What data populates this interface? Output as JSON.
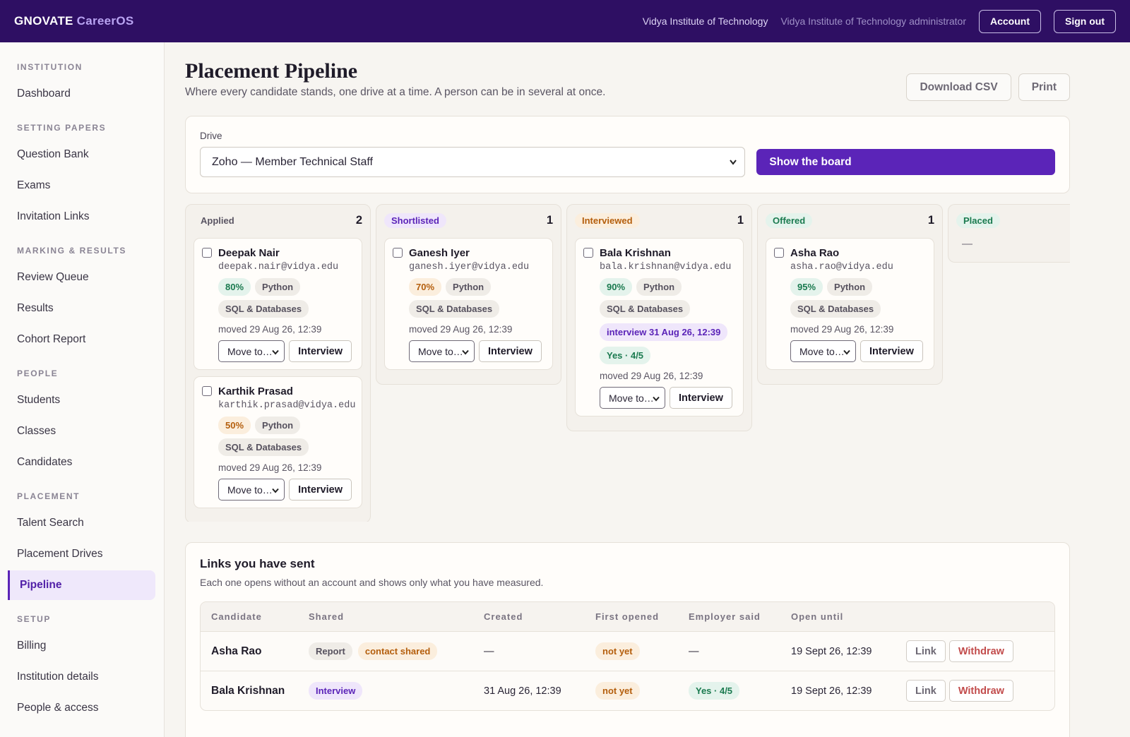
{
  "header": {
    "brand_primary": "GNOVATE",
    "brand_secondary": "CareerOS",
    "institution": "Vidya Institute of Technology",
    "role": "Vidya Institute of Technology administrator",
    "account_label": "Account",
    "signout_label": "Sign out"
  },
  "sidebar": {
    "sections": [
      {
        "title": "INSTITUTION",
        "items": [
          "Dashboard"
        ]
      },
      {
        "title": "SETTING PAPERS",
        "items": [
          "Question Bank",
          "Exams",
          "Invitation Links"
        ]
      },
      {
        "title": "MARKING & RESULTS",
        "items": [
          "Review Queue",
          "Results",
          "Cohort Report"
        ]
      },
      {
        "title": "PEOPLE",
        "items": [
          "Students",
          "Classes",
          "Candidates"
        ]
      },
      {
        "title": "PLACEMENT",
        "items": [
          "Talent Search",
          "Placement Drives",
          "Pipeline"
        ]
      },
      {
        "title": "SETUP",
        "items": [
          "Billing",
          "Institution details",
          "People & access"
        ]
      }
    ],
    "active_item": "Pipeline"
  },
  "page": {
    "title": "Placement Pipeline",
    "subtitle": "Where every candidate stands, one drive at a time. A person can be in several at once.",
    "download_csv_label": "Download CSV",
    "print_label": "Print"
  },
  "drive": {
    "label": "Drive",
    "selected": "Zoho — Member Technical Staff",
    "show_board_label": "Show the board"
  },
  "board": {
    "columns": [
      {
        "stage": "Applied",
        "count": "2",
        "color": "#5a5563",
        "bg": "#efece7",
        "cards": [
          {
            "name": "Deepak Nair",
            "email": "deepak.nair@vidya.edu",
            "score": "80%",
            "score_tone": "green",
            "skills": [
              "Python",
              "SQL & Databases"
            ],
            "moved": "moved 29 Aug 26, 12:39",
            "move_label": "Move to…",
            "interview_label": "Interview"
          },
          {
            "name": "Karthik Prasad",
            "email": "karthik.prasad@vidya.edu",
            "score": "50%",
            "score_tone": "orange",
            "skills": [
              "Python",
              "SQL & Databases"
            ],
            "moved": "moved 29 Aug 26, 12:39",
            "move_label": "Move to…",
            "interview_label": "Interview"
          }
        ]
      },
      {
        "stage": "Shortlisted",
        "count": "1",
        "color": "#5b24b8",
        "bg": "#efe6fb",
        "cards": [
          {
            "name": "Ganesh Iyer",
            "email": "ganesh.iyer@vidya.edu",
            "score": "70%",
            "score_tone": "orange",
            "skills": [
              "Python",
              "SQL & Databases"
            ],
            "moved": "moved 29 Aug 26, 12:39",
            "move_label": "Move to…",
            "interview_label": "Interview"
          }
        ]
      },
      {
        "stage": "Interviewed",
        "count": "1",
        "color": "#b45e0c",
        "bg": "#fbeedd",
        "cards": [
          {
            "name": "Bala Krishnan",
            "email": "bala.krishnan@vidya.edu",
            "score": "90%",
            "score_tone": "green",
            "skills": [
              "Python",
              "SQL & Databases"
            ],
            "interview": "interview 31 Aug 26, 12:39",
            "verdict": "Yes · 4/5",
            "moved": "moved 29 Aug 26, 12:39",
            "move_label": "Move to…",
            "interview_label": "Interview"
          }
        ]
      },
      {
        "stage": "Offered",
        "count": "1",
        "color": "#1a7a4f",
        "bg": "#e4f3ec",
        "cards": [
          {
            "name": "Asha Rao",
            "email": "asha.rao@vidya.edu",
            "score": "95%",
            "score_tone": "green",
            "skills": [
              "Python",
              "SQL & Databases"
            ],
            "moved": "moved 29 Aug 26, 12:39",
            "move_label": "Move to…",
            "interview_label": "Interview"
          }
        ]
      },
      {
        "stage": "Placed",
        "count": "",
        "color": "#1a7a4f",
        "bg": "#e4f3ec",
        "empty": "—",
        "cards": []
      }
    ]
  },
  "links": {
    "title": "Links you have sent",
    "subtitle": "Each one opens without an account and shows only what you have measured.",
    "headers": [
      "Candidate",
      "Shared",
      "Created",
      "First opened",
      "Employer said",
      "Open until"
    ],
    "rows": [
      {
        "candidate": "Asha Rao",
        "shared": [
          {
            "text": "Report",
            "tone": "grey"
          },
          {
            "text": "contact shared",
            "tone": "orange"
          }
        ],
        "created": "—",
        "first_opened": "not yet",
        "employer_said": "—",
        "employer_tone": "none",
        "open_until": "19 Sept 26, 12:39",
        "link_label": "Link",
        "withdraw_label": "Withdraw"
      },
      {
        "candidate": "Bala Krishnan",
        "shared": [
          {
            "text": "Interview",
            "tone": "purple"
          }
        ],
        "created": "31 Aug 26, 12:39",
        "first_opened": "not yet",
        "employer_said": "Yes · 4/5",
        "employer_tone": "green",
        "open_until": "19 Sept 26, 12:39",
        "link_label": "Link",
        "withdraw_label": "Withdraw"
      }
    ]
  }
}
